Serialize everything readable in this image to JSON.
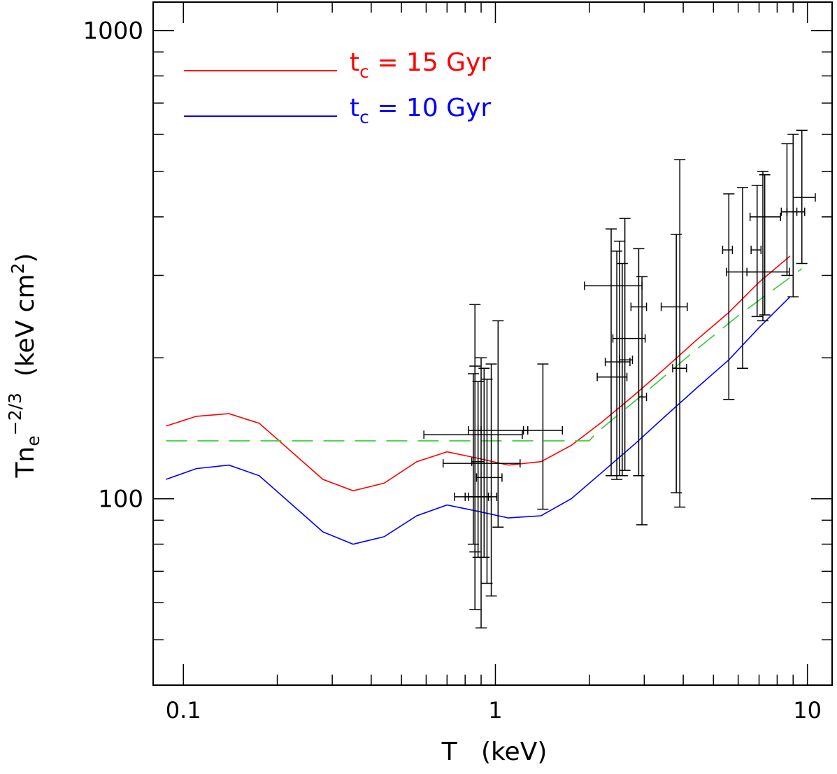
{
  "chart_data": {
    "type": "line",
    "xlabel": "T   (keV)",
    "ylabel": {
      "base": "Tn",
      "subscript": "e",
      "superscript": "−2/3",
      "units_open": "  (keV cm",
      "units_sup": "2",
      "units_close": ")"
    },
    "xscale": "log",
    "yscale": "log",
    "xlim": [
      0.08,
      12.0
    ],
    "ylim": [
      40,
      1150
    ],
    "xticks": [
      {
        "value": 0.1,
        "label": "0.1"
      },
      {
        "value": 1,
        "label": "1"
      },
      {
        "value": 10,
        "label": "10"
      }
    ],
    "yticks": [
      {
        "value": 100,
        "label": "100"
      },
      {
        "value": 1000,
        "label": "1000"
      }
    ],
    "legend_position": "top-left",
    "legend": [
      {
        "series": "t_c_15",
        "prefix": "t",
        "sub": "c",
        "text": " = 15 Gyr",
        "color": "#ff0000"
      },
      {
        "series": "t_c_10",
        "prefix": "t",
        "sub": "c",
        "text": " = 10 Gyr",
        "color": "#0000ff"
      }
    ],
    "series": [
      {
        "id": "t_c_15",
        "color": "#ff0000",
        "style": "solid",
        "x": [
          0.088,
          0.11,
          0.14,
          0.175,
          0.28,
          0.35,
          0.44,
          0.56,
          0.7,
          0.88,
          1.1,
          1.4,
          1.75,
          2.2,
          2.8,
          3.5,
          4.4,
          5.6,
          7.0,
          8.8
        ],
        "y": [
          143,
          150,
          152,
          145,
          110,
          104,
          108,
          120,
          126,
          122,
          118,
          120,
          130,
          146,
          167,
          190,
          218,
          250,
          290,
          330
        ]
      },
      {
        "id": "t_c_10",
        "color": "#0000ff",
        "style": "solid",
        "x": [
          0.088,
          0.11,
          0.14,
          0.175,
          0.28,
          0.35,
          0.44,
          0.56,
          0.7,
          0.88,
          1.1,
          1.4,
          1.75,
          2.2,
          2.8,
          3.5,
          4.4,
          5.6,
          7.0,
          8.8
        ],
        "y": [
          110,
          116,
          118,
          112,
          85,
          80,
          83,
          92,
          97,
          94,
          91,
          92,
          100,
          114,
          131,
          150,
          172,
          198,
          232,
          270
        ]
      },
      {
        "id": "fit",
        "color": "#33cc33",
        "style": "dashed",
        "x": [
          0.088,
          2.0,
          2.1,
          3.0,
          4.2,
          6.0,
          9.6
        ],
        "y": [
          133,
          133,
          138,
          168,
          203,
          246,
          310
        ]
      }
    ],
    "points": [
      {
        "x": 0.86,
        "y": 101,
        "xlo": 0.8,
        "xhi": 0.95,
        "ylo": 58,
        "yhi": 260
      },
      {
        "x": 0.9,
        "y": 101,
        "xlo": 0.74,
        "xhi": 0.97,
        "ylo": 53,
        "yhi": 200
      },
      {
        "x": 0.92,
        "y": 119,
        "xlo": 0.68,
        "xhi": 1.2,
        "ylo": 75,
        "yhi": 190
      },
      {
        "x": 0.94,
        "y": 101,
        "xlo": 0.82,
        "xhi": 1.01,
        "ylo": 66,
        "yhi": 180
      },
      {
        "x": 0.97,
        "y": 111,
        "xlo": 0.87,
        "xhi": 1.05,
        "ylo": 62,
        "yhi": 194
      },
      {
        "x": 1.02,
        "y": 140,
        "xlo": 0.88,
        "xhi": 1.27,
        "ylo": 87,
        "yhi": 240
      },
      {
        "x": 0.85,
        "y": 137,
        "xlo": 0.59,
        "xhi": 1.22,
        "ylo": 80,
        "yhi": 185
      },
      {
        "x": 0.86,
        "y": 140,
        "xlo": 0.82,
        "xhi": 0.9,
        "ylo": 77,
        "yhi": 192
      },
      {
        "x": 0.88,
        "y": 120,
        "xlo": 0.84,
        "xhi": 0.92,
        "ylo": 75,
        "yhi": 178
      },
      {
        "x": 1.42,
        "y": 140,
        "xlo": 1.23,
        "xhi": 1.64,
        "ylo": 95,
        "yhi": 194
      },
      {
        "x": 2.35,
        "y": 182,
        "xlo": 2.12,
        "xhi": 2.64,
        "ylo": 112,
        "yhi": 377
      },
      {
        "x": 2.45,
        "y": 196,
        "xlo": 2.25,
        "xhi": 2.7,
        "ylo": 110,
        "yhi": 338
      },
      {
        "x": 2.6,
        "y": 198,
        "xlo": 2.5,
        "xhi": 2.75,
        "ylo": 115,
        "yhi": 397
      },
      {
        "x": 2.55,
        "y": 220,
        "xlo": 2.38,
        "xhi": 3.02,
        "ylo": 112,
        "yhi": 318
      },
      {
        "x": 2.5,
        "y": 285,
        "xlo": 1.93,
        "xhi": 2.95,
        "ylo": 112,
        "yhi": 355
      },
      {
        "x": 2.88,
        "y": 257,
        "xlo": 2.72,
        "xhi": 3.05,
        "ylo": 112,
        "yhi": 342
      },
      {
        "x": 2.95,
        "y": 165,
        "xlo": 2.88,
        "xhi": 3.05,
        "ylo": 88,
        "yhi": 298
      },
      {
        "x": 3.8,
        "y": 257,
        "xlo": 3.4,
        "xhi": 4.12,
        "ylo": 103,
        "yhi": 367
      },
      {
        "x": 3.9,
        "y": 190,
        "xlo": 3.7,
        "xhi": 4.1,
        "ylo": 96,
        "yhi": 530
      },
      {
        "x": 5.6,
        "y": 340,
        "xlo": 5.35,
        "xhi": 5.75,
        "ylo": 163,
        "yhi": 448
      },
      {
        "x": 6.2,
        "y": 305,
        "xlo": 5.5,
        "xhi": 6.9,
        "ylo": 190,
        "yhi": 462
      },
      {
        "x": 6.9,
        "y": 340,
        "xlo": 6.6,
        "xhi": 7.1,
        "ylo": 245,
        "yhi": 467
      },
      {
        "x": 7.2,
        "y": 400,
        "xlo": 6.55,
        "xhi": 8.2,
        "ylo": 240,
        "yhi": 500
      },
      {
        "x": 7.3,
        "y": 305,
        "xlo": 6.4,
        "xhi": 8.75,
        "ylo": 247,
        "yhi": 492
      },
      {
        "x": 8.6,
        "y": 410,
        "xlo": 8.25,
        "xhi": 9.25,
        "ylo": 300,
        "yhi": 573
      },
      {
        "x": 9.0,
        "y": 410,
        "xlo": 8.6,
        "xhi": 9.8,
        "ylo": 270,
        "yhi": 600
      },
      {
        "x": 9.6,
        "y": 440,
        "xlo": 9.0,
        "xhi": 10.6,
        "ylo": 318,
        "yhi": 612
      }
    ]
  }
}
